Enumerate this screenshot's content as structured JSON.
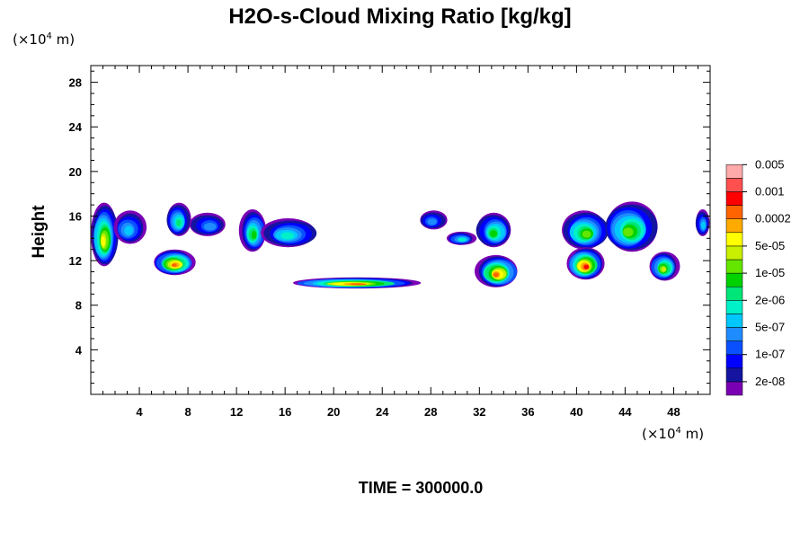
{
  "chart_data": {
    "type": "heatmap",
    "title": "H2O-s-Cloud Mixing Ratio [kg/kg]",
    "xlabel": "",
    "ylabel": "Height",
    "x_unit": "(×10⁴ m)",
    "y_unit": "(×10⁴ m)",
    "xlim": [
      0,
      51
    ],
    "ylim": [
      0,
      29.5
    ],
    "x_ticks": [
      4,
      8,
      12,
      16,
      20,
      24,
      28,
      32,
      36,
      40,
      44,
      48
    ],
    "y_ticks": [
      4,
      8,
      12,
      16,
      20,
      24,
      28
    ],
    "x_tick_labels": [
      "4",
      "8",
      "12",
      "16",
      "20",
      "24",
      "28",
      "32",
      "36",
      "40",
      "44",
      "48"
    ],
    "y_tick_labels": [
      "4",
      "8",
      "12",
      "16",
      "20",
      "24",
      "28"
    ],
    "grid": false,
    "footer": "TIME = 300000.0",
    "colorbar": {
      "position": "right",
      "colors": [
        "#7a00b4",
        "#1414a0",
        "#0000ff",
        "#0a50ff",
        "#1e8cff",
        "#00c8ff",
        "#00f0c8",
        "#00e678",
        "#00d200",
        "#64e600",
        "#c8f000",
        "#ffff00",
        "#ffaa00",
        "#ff6400",
        "#ff0000",
        "#ff5050",
        "#ffaaaa"
      ],
      "labels": [
        "2e-08",
        "1e-07",
        "5e-07",
        "2e-06",
        "1e-05",
        "5e-05",
        "0.0002",
        "0.001",
        "0.005"
      ]
    },
    "clouds": [
      {
        "x": [
          0,
          2.2
        ],
        "y": [
          11.5,
          17.2
        ],
        "peak": 12
      },
      {
        "x": [
          1.8,
          4.5
        ],
        "y": [
          13.5,
          16.5
        ],
        "peak": 6
      },
      {
        "x": [
          6.2,
          8.2
        ],
        "y": [
          14.2,
          17.2
        ],
        "peak": 8
      },
      {
        "x": [
          5.2,
          8.6
        ],
        "y": [
          10.7,
          13.0
        ],
        "peak": 14
      },
      {
        "x": [
          8.2,
          11.2
        ],
        "y": [
          14.2,
          16.3
        ],
        "peak": 5
      },
      {
        "x": [
          12.3,
          14.5
        ],
        "y": [
          12.8,
          16.6
        ],
        "peak": 9
      },
      {
        "x": [
          14.0,
          18.6
        ],
        "y": [
          13.2,
          15.8
        ],
        "peak": 7
      },
      {
        "x": [
          16.5,
          26.8
        ],
        "y": [
          9.5,
          10.5
        ],
        "peak": 14
      },
      {
        "x": [
          27.0,
          29.3
        ],
        "y": [
          14.8,
          16.5
        ],
        "peak": 5
      },
      {
        "x": [
          29.3,
          31.7
        ],
        "y": [
          13.4,
          14.6
        ],
        "peak": 7
      },
      {
        "x": [
          31.8,
          34.7
        ],
        "y": [
          13.2,
          16.3
        ],
        "peak": 9
      },
      {
        "x": [
          31.8,
          35.2
        ],
        "y": [
          9.6,
          12.5
        ],
        "peak": 14
      },
      {
        "x": [
          38.8,
          42.6
        ],
        "y": [
          13.0,
          16.5
        ],
        "peak": 10
      },
      {
        "x": [
          39.2,
          42.2
        ],
        "y": [
          10.3,
          13.2
        ],
        "peak": 15
      },
      {
        "x": [
          42.2,
          46.6
        ],
        "y": [
          12.8,
          17.3
        ],
        "peak": 10
      },
      {
        "x": [
          46.0,
          48.4
        ],
        "y": [
          10.2,
          12.8
        ],
        "peak": 11
      },
      {
        "x": [
          49.8,
          51.0
        ],
        "y": [
          14.2,
          16.6
        ],
        "peak": 6
      }
    ]
  }
}
